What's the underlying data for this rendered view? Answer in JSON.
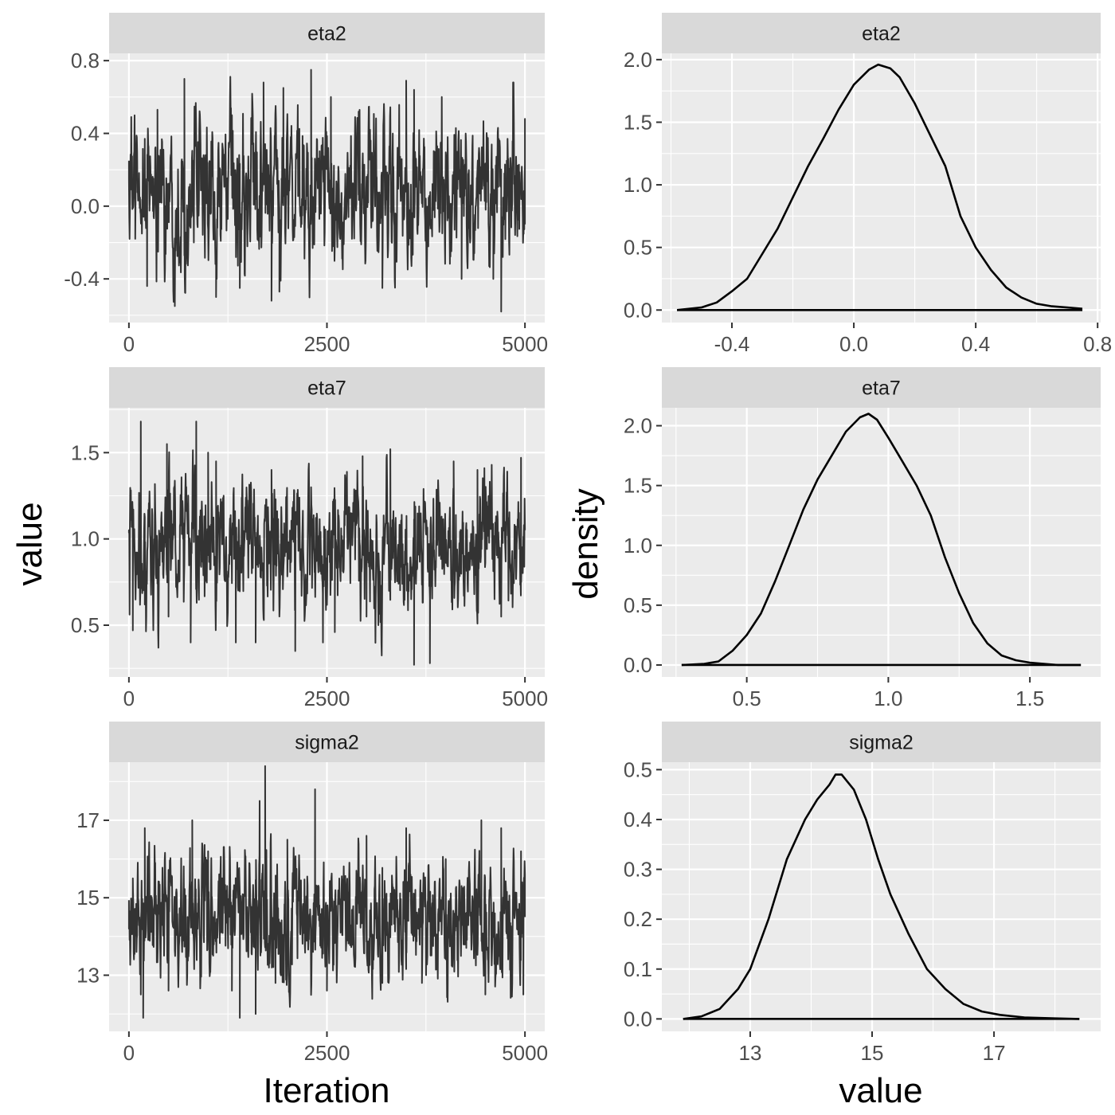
{
  "figure": {
    "left_xlabel": "Iteration",
    "left_ylabel": "value",
    "right_xlabel": "value",
    "right_ylabel": "density"
  },
  "chart_data": [
    {
      "type": "line",
      "kind": "trace",
      "title": "eta2",
      "xlabel": "Iteration",
      "ylabel": "value",
      "xlim": [
        -250,
        5250
      ],
      "ylim": [
        -0.64,
        0.84
      ],
      "xticks": [
        0,
        2500,
        5000
      ],
      "xtick_labels": [
        "0",
        "2500",
        "5000"
      ],
      "yticks": [
        -0.4,
        0.0,
        0.4,
        0.8
      ],
      "ytick_labels": [
        "-0.4",
        "0.0",
        "0.4",
        "0.8"
      ],
      "n_iter": 5000,
      "waypoints": [
        [
          0,
          0.15
        ],
        [
          30,
          0.49
        ],
        [
          80,
          -0.18
        ],
        [
          200,
          0.33
        ],
        [
          230,
          -0.44
        ],
        [
          360,
          0.53
        ],
        [
          580,
          -0.55
        ],
        [
          700,
          0.7
        ],
        [
          1100,
          -0.5
        ],
        [
          1300,
          0.5
        ],
        [
          1400,
          -0.45
        ],
        [
          1700,
          0.68
        ],
        [
          1800,
          -0.52
        ],
        [
          1900,
          -0.47
        ],
        [
          1950,
          0.65
        ],
        [
          2300,
          0.75
        ],
        [
          2550,
          0.6
        ],
        [
          2900,
          0.52
        ],
        [
          3200,
          -0.45
        ],
        [
          3500,
          0.69
        ],
        [
          3600,
          0.64
        ],
        [
          3950,
          0.6
        ],
        [
          4200,
          -0.4
        ],
        [
          4600,
          -0.4
        ],
        [
          4700,
          -0.58
        ],
        [
          4770,
          0.25
        ],
        [
          4850,
          0.68
        ],
        [
          5000,
          0.48
        ],
        [
          5000,
          -0.1
        ]
      ],
      "summary": {
        "center": 0.07,
        "spread": 0.2,
        "min": -0.58,
        "max": 0.75
      }
    },
    {
      "type": "line",
      "kind": "density",
      "title": "eta2",
      "xlabel": "value",
      "ylabel": "density",
      "xlim": [
        -0.63,
        0.81
      ],
      "ylim": [
        -0.1,
        2.05
      ],
      "xticks": [
        -0.4,
        0.0,
        0.4,
        0.8
      ],
      "xtick_labels": [
        "-0.4",
        "0.0",
        "0.4",
        "0.8"
      ],
      "yticks": [
        0.0,
        0.5,
        1.0,
        1.5,
        2.0
      ],
      "ytick_labels": [
        "0.0",
        "0.5",
        "1.0",
        "1.5",
        "2.0"
      ],
      "x": [
        -0.58,
        -0.5,
        -0.45,
        -0.4,
        -0.35,
        -0.3,
        -0.25,
        -0.2,
        -0.15,
        -0.1,
        -0.05,
        0.0,
        0.05,
        0.08,
        0.12,
        0.15,
        0.2,
        0.25,
        0.3,
        0.35,
        0.4,
        0.45,
        0.5,
        0.55,
        0.6,
        0.65,
        0.7,
        0.75
      ],
      "y": [
        0.0,
        0.02,
        0.06,
        0.15,
        0.25,
        0.45,
        0.65,
        0.9,
        1.15,
        1.37,
        1.6,
        1.8,
        1.92,
        1.96,
        1.93,
        1.86,
        1.65,
        1.4,
        1.15,
        0.75,
        0.5,
        0.32,
        0.18,
        0.1,
        0.05,
        0.03,
        0.02,
        0.01
      ]
    },
    {
      "type": "line",
      "kind": "trace",
      "title": "eta7",
      "xlabel": "Iteration",
      "ylabel": "value",
      "xlim": [
        -250,
        5250
      ],
      "ylim": [
        0.2,
        1.76
      ],
      "xticks": [
        0,
        2500,
        5000
      ],
      "xtick_labels": [
        "0",
        "2500",
        "5000"
      ],
      "yticks": [
        0.5,
        1.0,
        1.5
      ],
      "ytick_labels": [
        "0.5",
        "1.0",
        "1.5"
      ],
      "n_iter": 5000,
      "waypoints": [
        [
          0,
          1.05
        ],
        [
          20,
          1.18
        ],
        [
          50,
          0.47
        ],
        [
          150,
          1.68
        ],
        [
          200,
          0.62
        ],
        [
          480,
          1.55
        ],
        [
          500,
          0.55
        ],
        [
          780,
          0.4
        ],
        [
          850,
          1.68
        ],
        [
          1000,
          1.5
        ],
        [
          1100,
          1.45
        ],
        [
          1350,
          0.4
        ],
        [
          1600,
          0.4
        ],
        [
          1800,
          1.4
        ],
        [
          2100,
          0.35
        ],
        [
          2300,
          1.3
        ],
        [
          2450,
          0.4
        ],
        [
          2600,
          0.46
        ],
        [
          2950,
          1.48
        ],
        [
          3000,
          0.55
        ],
        [
          3150,
          0.5
        ],
        [
          3300,
          1.52
        ],
        [
          3600,
          0.27
        ],
        [
          3800,
          0.28
        ],
        [
          4100,
          1.45
        ],
        [
          4400,
          1.4
        ],
        [
          4700,
          0.55
        ],
        [
          4950,
          1.47
        ],
        [
          5000,
          1.05
        ]
      ],
      "summary": {
        "center": 0.95,
        "spread": 0.19,
        "min": 0.27,
        "max": 1.68
      }
    },
    {
      "type": "line",
      "kind": "density",
      "title": "eta7",
      "xlabel": "value",
      "ylabel": "density",
      "xlim": [
        0.2,
        1.75
      ],
      "ylim": [
        -0.1,
        2.15
      ],
      "xticks": [
        0.5,
        1.0,
        1.5
      ],
      "xtick_labels": [
        "0.5",
        "1.0",
        "1.5"
      ],
      "yticks": [
        0.0,
        0.5,
        1.0,
        1.5,
        2.0
      ],
      "ytick_labels": [
        "0.0",
        "0.5",
        "1.0",
        "1.5",
        "2.0"
      ],
      "x": [
        0.27,
        0.35,
        0.4,
        0.45,
        0.5,
        0.55,
        0.6,
        0.65,
        0.7,
        0.75,
        0.8,
        0.85,
        0.9,
        0.93,
        0.96,
        1.0,
        1.05,
        1.1,
        1.15,
        1.2,
        1.25,
        1.3,
        1.35,
        1.4,
        1.45,
        1.5,
        1.55,
        1.6,
        1.68
      ],
      "y": [
        0.0,
        0.01,
        0.03,
        0.12,
        0.25,
        0.43,
        0.7,
        1.0,
        1.3,
        1.55,
        1.75,
        1.95,
        2.07,
        2.1,
        2.05,
        1.9,
        1.7,
        1.5,
        1.25,
        0.9,
        0.6,
        0.35,
        0.18,
        0.08,
        0.04,
        0.02,
        0.01,
        0.0,
        0.0
      ]
    },
    {
      "type": "line",
      "kind": "trace",
      "title": "sigma2",
      "xlabel": "Iteration",
      "ylabel": "value",
      "xlim": [
        -250,
        5250
      ],
      "ylim": [
        11.55,
        18.5
      ],
      "xticks": [
        0,
        2500,
        5000
      ],
      "xtick_labels": [
        "0",
        "2500",
        "5000"
      ],
      "yticks": [
        13,
        15,
        17
      ],
      "ytick_labels": [
        "13",
        "15",
        "17"
      ],
      "n_iter": 5000,
      "waypoints": [
        [
          0,
          14.2
        ],
        [
          50,
          15.5
        ],
        [
          150,
          12.5
        ],
        [
          180,
          11.9
        ],
        [
          200,
          16.8
        ],
        [
          500,
          12.6
        ],
        [
          800,
          17.0
        ],
        [
          1000,
          16.2
        ],
        [
          1300,
          12.6
        ],
        [
          1400,
          11.9
        ],
        [
          1600,
          12.0
        ],
        [
          1650,
          17.5
        ],
        [
          1720,
          18.4
        ],
        [
          1850,
          12.8
        ],
        [
          2000,
          16.5
        ],
        [
          2350,
          17.8
        ],
        [
          2500,
          12.6
        ],
        [
          3000,
          16.6
        ],
        [
          3200,
          12.8
        ],
        [
          3500,
          16.8
        ],
        [
          3700,
          12.8
        ],
        [
          4000,
          16.0
        ],
        [
          4450,
          17.0
        ],
        [
          4500,
          12.5
        ],
        [
          4700,
          16.8
        ],
        [
          4950,
          16.2
        ],
        [
          4980,
          12.5
        ],
        [
          5000,
          14.5
        ]
      ],
      "summary": {
        "center": 14.5,
        "spread": 0.82,
        "min": 11.9,
        "max": 18.4
      }
    },
    {
      "type": "line",
      "kind": "density",
      "title": "sigma2",
      "xlabel": "value",
      "ylabel": "density",
      "xlim": [
        11.55,
        18.75
      ],
      "ylim": [
        -0.025,
        0.515
      ],
      "xticks": [
        13,
        15,
        17
      ],
      "xtick_labels": [
        "13",
        "15",
        "17"
      ],
      "yticks": [
        0.0,
        0.1,
        0.2,
        0.3,
        0.4,
        0.5
      ],
      "ytick_labels": [
        "0.0",
        "0.1",
        "0.2",
        "0.3",
        "0.4",
        "0.5"
      ],
      "x": [
        11.9,
        12.2,
        12.5,
        12.8,
        13.0,
        13.3,
        13.6,
        13.9,
        14.1,
        14.3,
        14.4,
        14.5,
        14.7,
        14.9,
        15.1,
        15.3,
        15.6,
        15.9,
        16.2,
        16.5,
        16.8,
        17.1,
        17.5,
        18.0,
        18.4
      ],
      "y": [
        0.0,
        0.005,
        0.02,
        0.06,
        0.1,
        0.2,
        0.32,
        0.4,
        0.44,
        0.47,
        0.49,
        0.49,
        0.46,
        0.4,
        0.32,
        0.25,
        0.17,
        0.1,
        0.06,
        0.03,
        0.015,
        0.008,
        0.003,
        0.001,
        0.0
      ]
    }
  ]
}
